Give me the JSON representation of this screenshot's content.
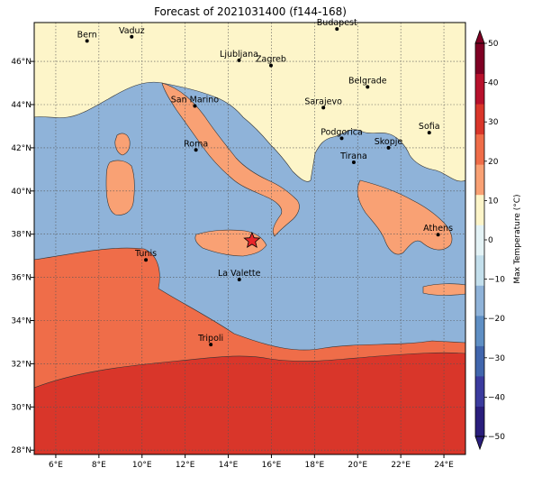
{
  "title": "Forecast of 2021031400 (f144-168)",
  "map": {
    "lon_range": [
      5,
      25
    ],
    "lat_range": [
      27.8,
      47.8
    ],
    "x_ticks": [
      {
        "value": 6,
        "label": "6°E"
      },
      {
        "value": 8,
        "label": "8°E"
      },
      {
        "value": 10,
        "label": "10°E"
      },
      {
        "value": 12,
        "label": "12°E"
      },
      {
        "value": 14,
        "label": "14°E"
      },
      {
        "value": 16,
        "label": "16°E"
      },
      {
        "value": 18,
        "label": "18°E"
      },
      {
        "value": 20,
        "label": "20°E"
      },
      {
        "value": 22,
        "label": "22°E"
      },
      {
        "value": 24,
        "label": "24°E"
      }
    ],
    "y_ticks": [
      {
        "value": 28,
        "label": "28°N"
      },
      {
        "value": 30,
        "label": "30°N"
      },
      {
        "value": 32,
        "label": "32°N"
      },
      {
        "value": 34,
        "label": "34°N"
      },
      {
        "value": 36,
        "label": "36°N"
      },
      {
        "value": 38,
        "label": "38°N"
      },
      {
        "value": 40,
        "label": "40°N"
      },
      {
        "value": 42,
        "label": "42°N"
      },
      {
        "value": 44,
        "label": "44°N"
      },
      {
        "value": 46,
        "label": "46°N"
      }
    ],
    "grid": true,
    "colors": {
      "sea": "#8fb3d9",
      "light_blue": "#dbeef5",
      "cream": "#fdf5c9",
      "light_orange": "#f9a174",
      "orange": "#ef6d49",
      "red": "#d9362a"
    },
    "cities": [
      {
        "name": "Bern",
        "lon": 7.45,
        "lat": 46.95
      },
      {
        "name": "Vaduz",
        "lon": 9.52,
        "lat": 47.14
      },
      {
        "name": "Budapest",
        "lon": 19.04,
        "lat": 47.5
      },
      {
        "name": "Ljubljana",
        "lon": 14.5,
        "lat": 46.05
      },
      {
        "name": "Zagreb",
        "lon": 15.98,
        "lat": 45.81
      },
      {
        "name": "Belgrade",
        "lon": 20.46,
        "lat": 44.82
      },
      {
        "name": "San Marino",
        "lon": 12.45,
        "lat": 43.94
      },
      {
        "name": "Sarajevo",
        "lon": 18.41,
        "lat": 43.86
      },
      {
        "name": "Sofia",
        "lon": 23.32,
        "lat": 42.7
      },
      {
        "name": "Roma",
        "lon": 12.5,
        "lat": 41.9
      },
      {
        "name": "Podgorica",
        "lon": 19.26,
        "lat": 42.44
      },
      {
        "name": "Skopje",
        "lon": 21.43,
        "lat": 42.0
      },
      {
        "name": "Tirana",
        "lon": 19.82,
        "lat": 41.33
      },
      {
        "name": "Athens",
        "lon": 23.73,
        "lat": 37.98
      },
      {
        "name": "Tunis",
        "lon": 10.18,
        "lat": 36.81
      },
      {
        "name": "La Valette",
        "lon": 14.51,
        "lat": 35.9
      },
      {
        "name": "Tripoli",
        "lon": 13.19,
        "lat": 32.89
      }
    ],
    "marker": {
      "lon": 15.1,
      "lat": 37.7,
      "color": "#e8262a",
      "shape": "star"
    }
  },
  "colorbar": {
    "label": "Max Temperature (°C)",
    "min": -50,
    "max": 50,
    "ticks": [
      "50",
      "40",
      "30",
      "20",
      "10",
      "0",
      "−10",
      "−20",
      "−30",
      "−40",
      "−50"
    ],
    "colors": [
      "#2a1e7c",
      "#3b3b9e",
      "#4166ad",
      "#5f8fc4",
      "#8fb3d9",
      "#c3dfec",
      "#e4f3f6",
      "#fdf5c9",
      "#f9a174",
      "#ef6d49",
      "#d9362a",
      "#b7112c",
      "#7f0024"
    ]
  }
}
